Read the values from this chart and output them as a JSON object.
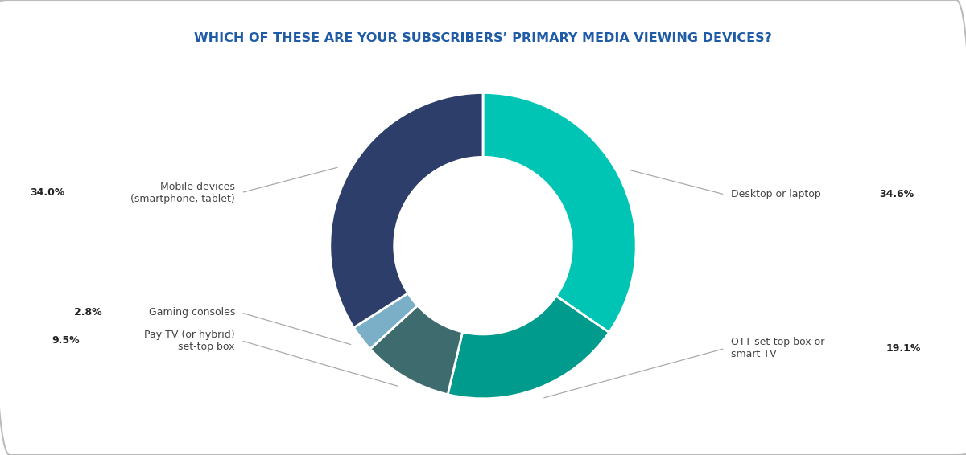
{
  "title": "WHICH OF THESE ARE YOUR SUBSCRIBERS’ PRIMARY MEDIA VIEWING DEVICES?",
  "title_color": "#1F5BA6",
  "title_fontsize": 11.5,
  "segments": [
    {
      "label": "Desktop or laptop",
      "value": 34.6,
      "color": "#00C4B4",
      "label_side": "right"
    },
    {
      "label": "OTT set-top box or\nsmart TV",
      "value": 19.1,
      "color": "#009B8D",
      "label_side": "right"
    },
    {
      "label": "Pay TV (or hybrid)\nset-top box",
      "value": 9.5,
      "color": "#3D6B6E",
      "label_side": "left"
    },
    {
      "label": "Gaming consoles",
      "value": 2.8,
      "color": "#7BAFC8",
      "label_side": "left"
    },
    {
      "label": "Mobile devices\n(smartphone, tablet)",
      "value": 34.0,
      "color": "#2D3E6B",
      "label_side": "left"
    }
  ],
  "background_color": "#FFFFFF",
  "border_color": "#BBBBBB",
  "start_angle": 90,
  "label_fontsize": 9,
  "value_fontsize": 9
}
